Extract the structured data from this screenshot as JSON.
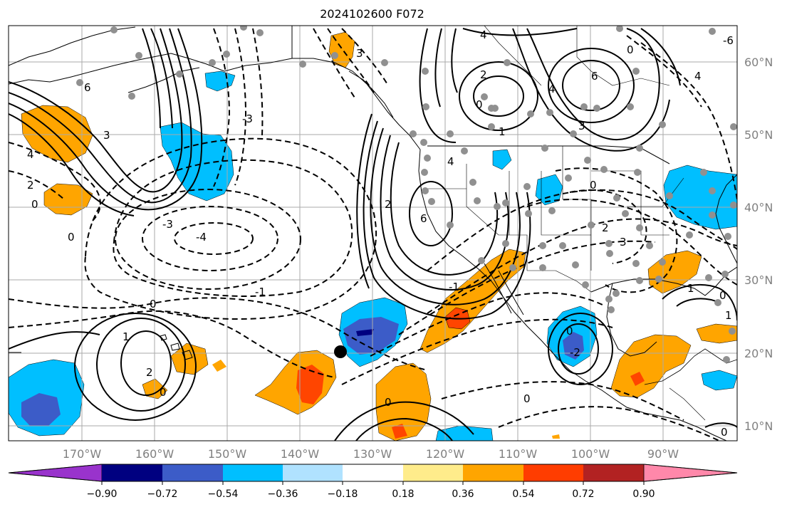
{
  "title": "2024102600 F072",
  "map": {
    "lon_ticks": [
      "170°W",
      "160°W",
      "150°W",
      "140°W",
      "130°W",
      "120°W",
      "110°W",
      "100°W",
      "90°W"
    ],
    "lat_ticks": [
      "60°N",
      "50°N",
      "40°N",
      "30°N",
      "20°N",
      "10°N"
    ],
    "contour_labels": [
      "6",
      "4",
      "3",
      "2",
      "0",
      "-3",
      "-4",
      "-1",
      "1",
      "-2",
      "-6"
    ]
  },
  "colorbar": {
    "tick_labels": [
      "−0.90",
      "−0.72",
      "−0.54",
      "−0.36",
      "−0.18",
      "0.18",
      "0.36",
      "0.54",
      "0.72",
      "0.90"
    ],
    "colors": [
      "#9933cc",
      "#000080",
      "#3c5cc8",
      "#00bfff",
      "#b0e2ff",
      "#ffffff",
      "#ffec8b",
      "#ffa500",
      "#ff3d00",
      "#b22222",
      "#ff88aa"
    ]
  },
  "colors": {
    "orange": "#ffa500",
    "red": "#ff4500",
    "lightblue": "#00bfff",
    "blue": "#3c5cc8",
    "navy": "#000080",
    "dot": "#909090"
  }
}
